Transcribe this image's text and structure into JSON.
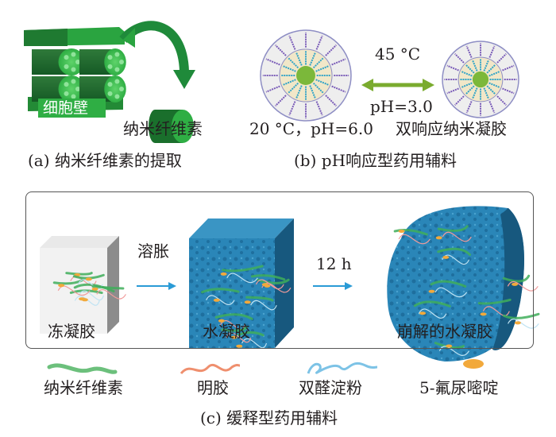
{
  "panel_a": {
    "cell_wall_label": "细胞壁",
    "nanocellulose_label": "纳米纤维素",
    "caption": "(a) 纳米纤维素的提取"
  },
  "panel_b": {
    "temp_label": "45 °C",
    "ph_label": "pH=3.0",
    "initial_condition": "20 °C，pH=6.0",
    "product_label": "双响应纳米凝胶",
    "caption": "(b) pH响应型药用辅料"
  },
  "panel_c": {
    "step1_label": "溶胀",
    "step2_label": "12 h",
    "stages": [
      "冻凝胶",
      "水凝胶",
      "崩解的水凝胶"
    ],
    "legend": [
      "纳米纤维素",
      "明胶",
      "双醛淀粉",
      "5-氟尿嘧啶"
    ],
    "caption": "(c) 缓释型药用辅料"
  },
  "colors": {
    "green": "#1f8a3a",
    "light_green": "#4fc35a",
    "hydrogel_blue": "#2a86b8",
    "arrow_blue": "#2a9bd6",
    "arrow_olive": "#7aab2e",
    "drug_orange": "#f2a93b"
  }
}
